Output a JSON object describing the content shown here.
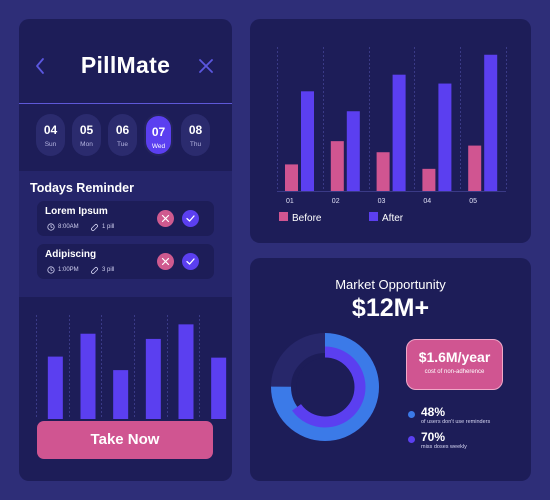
{
  "app": {
    "title": "PillMate",
    "days": [
      {
        "num": "04",
        "name": "Sun",
        "active": false
      },
      {
        "num": "05",
        "name": "Mon",
        "active": false
      },
      {
        "num": "06",
        "name": "Tue",
        "active": false
      },
      {
        "num": "07",
        "name": "Wed",
        "active": true
      },
      {
        "num": "08",
        "name": "Thu",
        "active": false
      }
    ],
    "reminders_title": "Todays Reminder",
    "reminders": [
      {
        "name": "Lorem Ipsum",
        "time": "8:00AM",
        "dose": "1 pill"
      },
      {
        "name": "Adipiscing",
        "time": "1:00PM",
        "dose": "3 pill"
      }
    ],
    "take_now_label": "Take Now"
  },
  "colors": {
    "background": "#2e2e78",
    "panel": "#1d1d58",
    "accent_purple": "#5b3ff0",
    "accent_pink": "#d05591",
    "accent_blue": "#3b7ae8"
  },
  "chart_data": [
    {
      "type": "bar",
      "categories": [
        "",
        "",
        "",
        "",
        "",
        ""
      ],
      "values": [
        6,
        8.2,
        4.7,
        7.7,
        9.1,
        5.9
      ],
      "ylim": [
        0,
        10
      ],
      "grid": true
    },
    {
      "type": "bar",
      "categories": [
        "01",
        "02",
        "03",
        "04",
        "05"
      ],
      "series": [
        {
          "name": "Before",
          "values": [
            2.4,
            4.5,
            3.5,
            2.0,
            4.1
          ]
        },
        {
          "name": "After",
          "values": [
            9.0,
            7.2,
            10.5,
            9.7,
            12.3
          ]
        }
      ],
      "ylim": [
        0,
        13
      ],
      "grid": true,
      "legend": "bottom-left"
    },
    {
      "type": "pie",
      "title": "Market Opportunity",
      "headline": "$12M+",
      "badge_value": "$1.6M/year",
      "badge_caption": "cost of non-adherence",
      "segments": [
        {
          "label": "of users don't use reminders",
          "value": 48,
          "display": "48%",
          "color": "#3b7ae8"
        },
        {
          "label": "miss doses weekly",
          "value": 70,
          "display": "70%",
          "color": "#5b3ff0"
        }
      ]
    }
  ]
}
